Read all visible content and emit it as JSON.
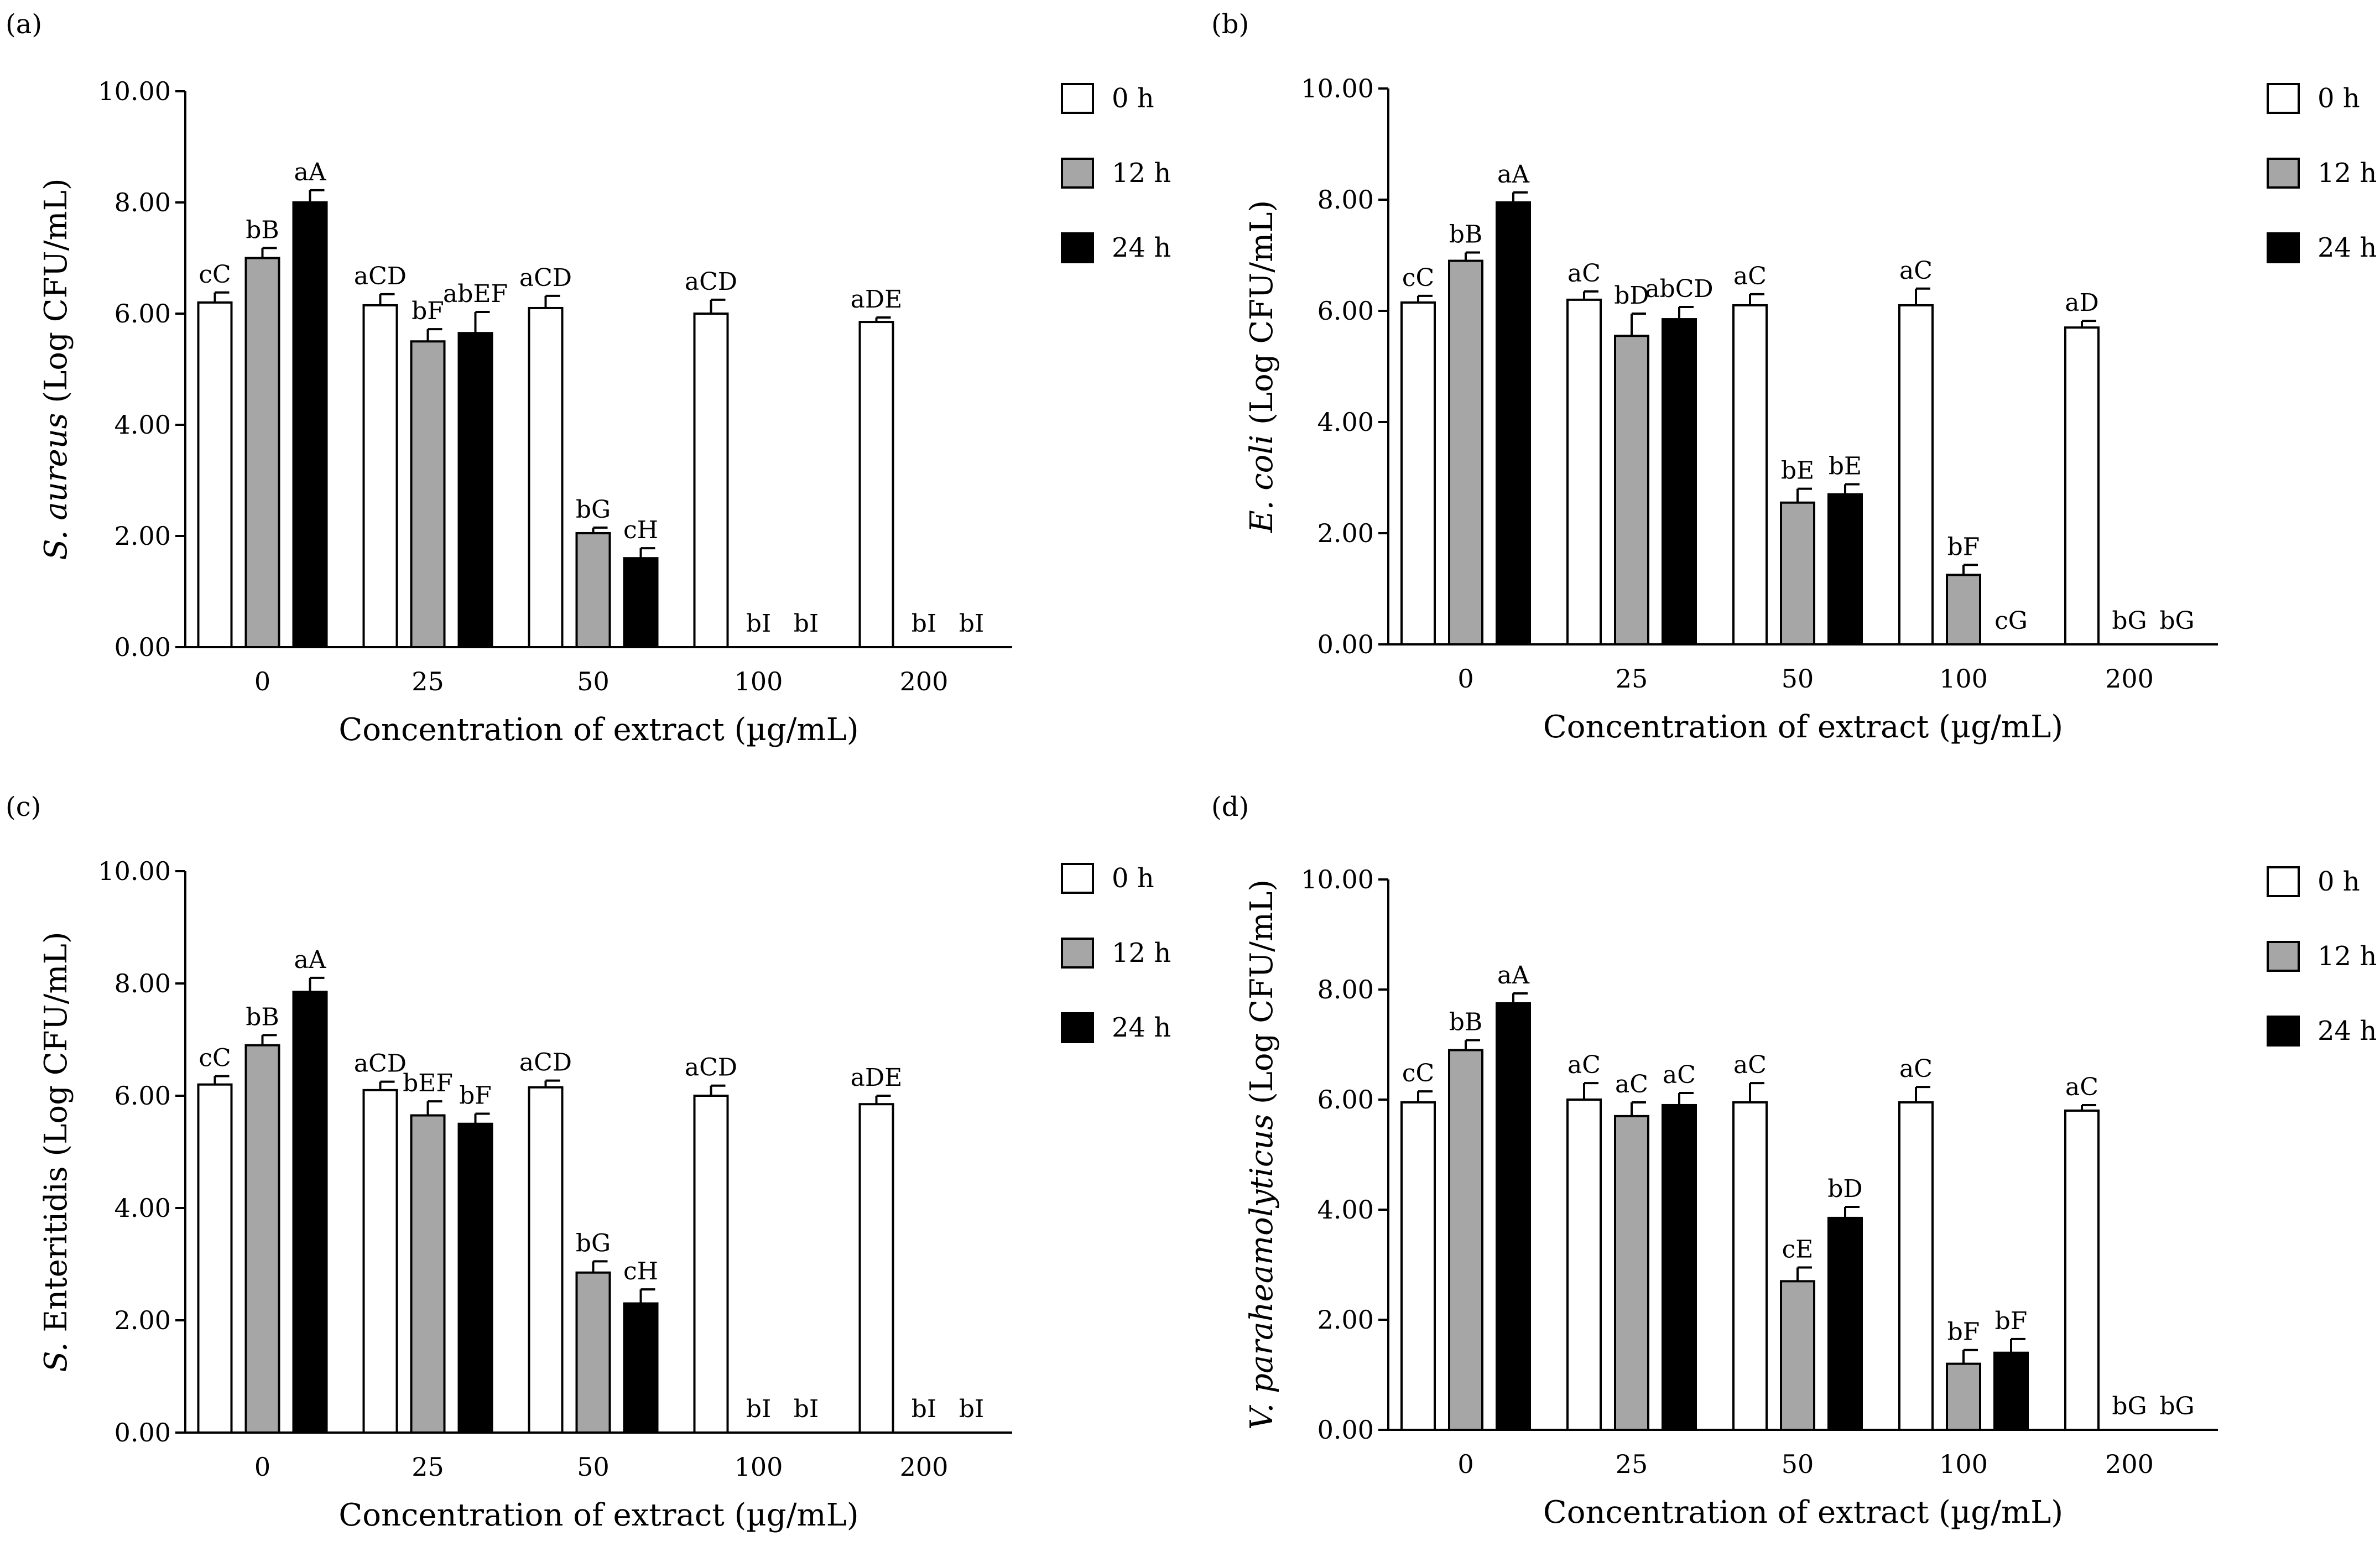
{
  "figure": {
    "legend": [
      {
        "label": "0 h",
        "fill": "#ffffff"
      },
      {
        "label": "12 h",
        "fill": "#a6a6a6"
      },
      {
        "label": "24 h",
        "fill": "#000000"
      }
    ]
  },
  "chart_data": [
    {
      "panel": "(a)",
      "type": "bar",
      "title": "",
      "xlabel": "Concentration of extract (µg/mL)",
      "ylabel_italic": "S. aureus",
      "ylabel_rest": " (Log CFU/mL)",
      "ylim": [
        0,
        10
      ],
      "yticks": [
        "0.00",
        "2.00",
        "4.00",
        "6.00",
        "8.00",
        "10.00"
      ],
      "categories": [
        "0",
        "25",
        "50",
        "100",
        "200"
      ],
      "series": [
        {
          "name": "0 h",
          "values": [
            6.2,
            6.15,
            6.1,
            6.0,
            5.85
          ],
          "errors": [
            0.18,
            0.2,
            0.22,
            0.25,
            0.08
          ],
          "labels": [
            "cC",
            "aCD",
            "aCD",
            "aCD",
            "aDE"
          ]
        },
        {
          "name": "12 h",
          "values": [
            7.0,
            5.5,
            2.05,
            0,
            0
          ],
          "errors": [
            0.18,
            0.22,
            0.1,
            0,
            0
          ],
          "labels": [
            "bB",
            "bF",
            "bG",
            "bI",
            "bI"
          ]
        },
        {
          "name": "24 h",
          "values": [
            8.0,
            5.65,
            1.6,
            0,
            0
          ],
          "errors": [
            0.22,
            0.38,
            0.18,
            0,
            0
          ],
          "labels": [
            "aA",
            "abEF",
            "cH",
            "bI",
            "bI"
          ]
        }
      ]
    },
    {
      "panel": "(b)",
      "type": "bar",
      "title": "",
      "xlabel": "Concentration of extract (µg/mL)",
      "ylabel_italic": "E. coli",
      "ylabel_rest": " (Log CFU/mL)",
      "ylim": [
        0,
        10
      ],
      "yticks": [
        "0.00",
        "2.00",
        "4.00",
        "6.00",
        "8.00",
        "10.00"
      ],
      "categories": [
        "0",
        "25",
        "50",
        "100",
        "200"
      ],
      "series": [
        {
          "name": "0 h",
          "values": [
            6.15,
            6.2,
            6.1,
            6.1,
            5.7
          ],
          "errors": [
            0.12,
            0.15,
            0.2,
            0.3,
            0.12
          ],
          "labels": [
            "cC",
            "aC",
            "aC",
            "aC",
            "aD"
          ]
        },
        {
          "name": "12 h",
          "values": [
            6.9,
            5.55,
            2.55,
            1.25,
            0
          ],
          "errors": [
            0.15,
            0.4,
            0.25,
            0.18,
            0
          ],
          "labels": [
            "bB",
            "bD",
            "bE",
            "bF",
            "bG"
          ]
        },
        {
          "name": "24 h",
          "values": [
            7.95,
            5.85,
            2.7,
            0,
            0
          ],
          "errors": [
            0.18,
            0.22,
            0.18,
            0,
            0
          ],
          "labels": [
            "aA",
            "abCD",
            "bE",
            "cG",
            "bG"
          ]
        }
      ]
    },
    {
      "panel": "(c)",
      "type": "bar",
      "title": "",
      "xlabel": "Concentration of extract (µg/mL)",
      "ylabel_italic": "S.",
      "ylabel_rest": " Enteritidis (Log CFU/mL)",
      "ylim": [
        0,
        10
      ],
      "yticks": [
        "0.00",
        "2.00",
        "4.00",
        "6.00",
        "8.00",
        "10.00"
      ],
      "categories": [
        "0",
        "25",
        "50",
        "100",
        "200"
      ],
      "series": [
        {
          "name": "0 h",
          "values": [
            6.2,
            6.1,
            6.15,
            6.0,
            5.85
          ],
          "errors": [
            0.15,
            0.15,
            0.12,
            0.18,
            0.15
          ],
          "labels": [
            "cC",
            "aCD",
            "aCD",
            "aCD",
            "aDE"
          ]
        },
        {
          "name": "12 h",
          "values": [
            6.9,
            5.65,
            2.85,
            0,
            0
          ],
          "errors": [
            0.18,
            0.25,
            0.2,
            0,
            0
          ],
          "labels": [
            "bB",
            "bEF",
            "bG",
            "bI",
            "bI"
          ]
        },
        {
          "name": "24 h",
          "values": [
            7.85,
            5.5,
            2.3,
            0,
            0
          ],
          "errors": [
            0.25,
            0.18,
            0.25,
            0,
            0
          ],
          "labels": [
            "aA",
            "bF",
            "cH",
            "bI",
            "bI"
          ]
        }
      ]
    },
    {
      "panel": "(d)",
      "type": "bar",
      "title": "",
      "xlabel": "Concentration of extract (µg/mL)",
      "ylabel_italic": "V. paraheamolyticus",
      "ylabel_rest": " (Log CFU/mL)",
      "ylim": [
        0,
        10
      ],
      "yticks": [
        "0.00",
        "2.00",
        "4.00",
        "6.00",
        "8.00",
        "10.00"
      ],
      "categories": [
        "0",
        "25",
        "50",
        "100",
        "200"
      ],
      "series": [
        {
          "name": "0 h",
          "values": [
            5.95,
            6.0,
            5.95,
            5.95,
            5.8
          ],
          "errors": [
            0.2,
            0.3,
            0.35,
            0.28,
            0.1
          ],
          "labels": [
            "cC",
            "aC",
            "aC",
            "aC",
            "aC"
          ]
        },
        {
          "name": "12 h",
          "values": [
            6.9,
            5.7,
            2.7,
            1.2,
            0
          ],
          "errors": [
            0.18,
            0.25,
            0.25,
            0.25,
            0
          ],
          "labels": [
            "bB",
            "aC",
            "cE",
            "bF",
            "bG"
          ]
        },
        {
          "name": "24 h",
          "values": [
            7.75,
            5.9,
            3.85,
            1.4,
            0
          ],
          "errors": [
            0.18,
            0.22,
            0.2,
            0.25,
            0
          ],
          "labels": [
            "aA",
            "aC",
            "bD",
            "bF",
            "bG"
          ]
        }
      ]
    }
  ]
}
